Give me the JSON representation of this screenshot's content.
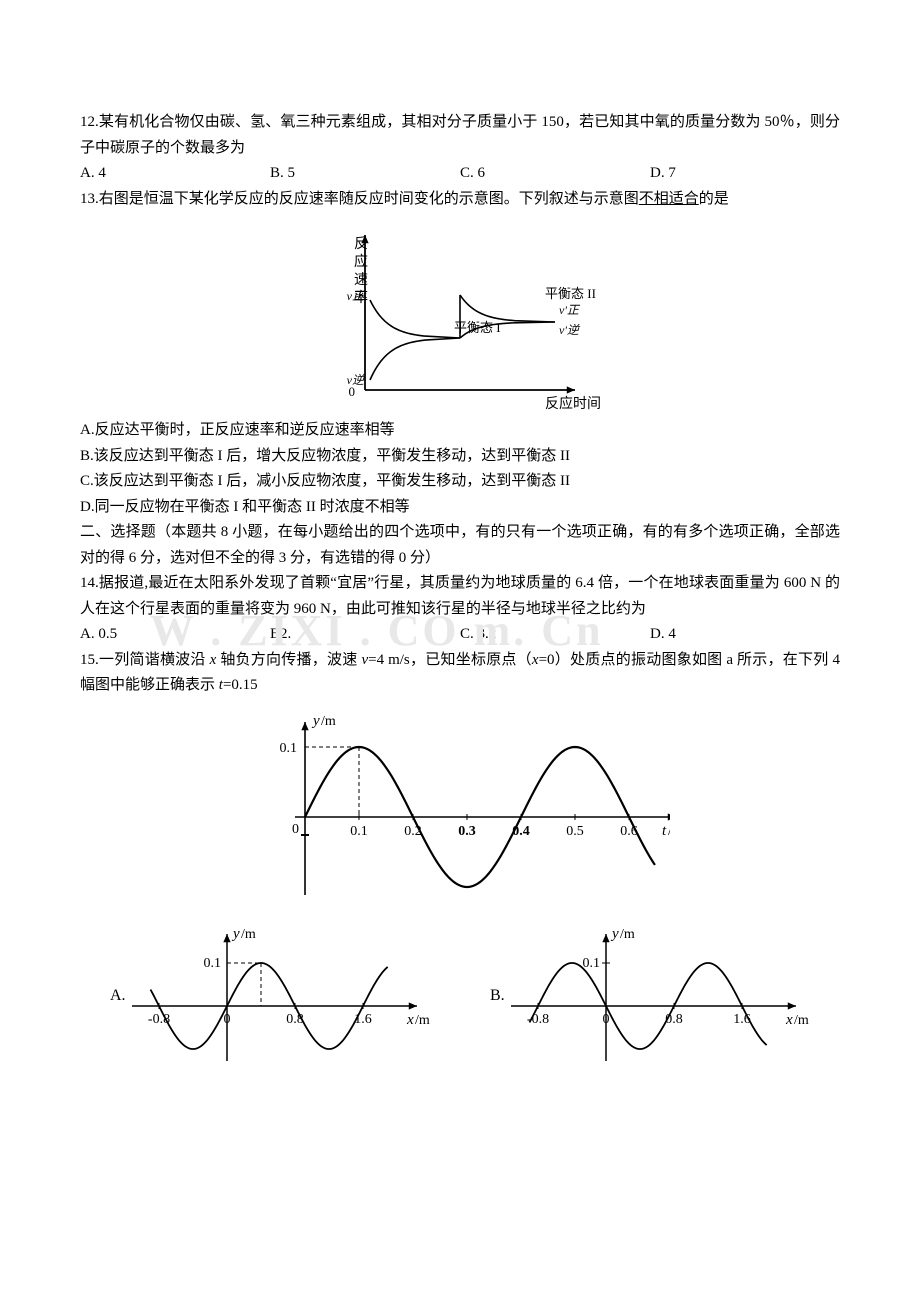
{
  "q12": {
    "stem": "12.某有机化合物仅由碳、氢、氧三种元素组成，其相对分子质量小于 150，若已知其中氧的质量分数为 50％，则分子中碳原子的个数最多为",
    "opts": {
      "A": "A. 4",
      "B": "B. 5",
      "C": "C. 6",
      "D": "D. 7"
    }
  },
  "q13": {
    "stem1": "13.右图是恒温下某化学反应的反应速率随反应时间变化的示意图。下列叙述与示意图",
    "stem1_u": "不相适合",
    "stem1_tail": "的是",
    "optA": "A.反应达平衡时，正反应速率和逆反应速率相等",
    "optB": "B.该反应达到平衡态 I 后，增大反应物浓度，平衡发生移动，达到平衡态 II",
    "optC": "C.该反应达到平衡态 I 后，减小反应物浓度，平衡发生移动，达到平衡态 II",
    "optD": "D.同一反应物在平衡态 I 和平衡态 II 时浓度不相等",
    "figure": {
      "ylabel": "反应速率",
      "xlabel": "反应时间",
      "label_p1": "平衡态 I",
      "label_p2": "平衡态 II",
      "v_zheng": "v正",
      "v_ni": "v逆",
      "v_zheng_p": "v'正",
      "v_ni_p": "v'逆",
      "axis_color": "#000000",
      "line_color": "#000000",
      "curve_width": 1.6,
      "axis_width": 1.8
    }
  },
  "sec2": "二、选择题（本题共 8 小题，在每小题给出的四个选项中，有的只有一个选项正确，有的有多个选项正确，全部选对的得 6 分，选对但不全的得 3 分，有选错的得 0 分）",
  "q14": {
    "stem": "14.据报道,最近在太阳系外发现了首颗“宜居”行星，其质量约为地球质量的 6.4 倍，一个在地球表面重量为 600 N 的人在这个行星表面的重量将变为 960 N，由此可推知该行星的半径与地球半径之比约为",
    "opts": {
      "A": "A. 0.5",
      "B": "B2.",
      "C": "C. 3.2",
      "D": "D. 4"
    }
  },
  "watermark": "W . ZIXI . CO m. Cn",
  "q15": {
    "stem_a": "15.一列简谐横波沿 ",
    "stem_b": " 轴负方向传播，波速 ",
    "stem_c": "=4 m/s，已知坐标原点（",
    "stem_d": "=0）处质点的振动图象如图 a 所示，在下列 4 幅图中能够正确表示 ",
    "stem_e": "=0.15",
    "var_x": "x",
    "var_v": "v",
    "var_t": "t",
    "main_chart": {
      "type": "line",
      "xlabel_var": "t",
      "xlabel_unit": "/s",
      "ylabel_var": "y",
      "ylabel_unit": "/m",
      "ylim": [
        -0.12,
        0.12
      ],
      "xlim": [
        0,
        0.65
      ],
      "yticks": [
        0.1
      ],
      "xticks": [
        "0.1",
        "0.2",
        "0.3",
        "0.4",
        "0.5",
        "0.6"
      ],
      "amplitude": 0.1,
      "period": 0.4,
      "phase": 0,
      "axis_color": "#000000",
      "curve_color": "#000000",
      "curve_width": 2.2,
      "dash_color": "#000000",
      "dash_pattern": "4 3",
      "bg": "#ffffff"
    },
    "opt_chart_common": {
      "xlabel_var": "x",
      "xlabel_unit": "/m",
      "ylabel_var": "y",
      "ylabel_unit": "/m",
      "ytick": "0.1",
      "xticks": [
        "-0.8",
        "0",
        "0.8",
        "1.6"
      ],
      "amplitude": 0.1,
      "wavelength": 1.6,
      "axis_color": "#000000",
      "curve_color": "#000000",
      "curve_width": 1.8,
      "dash_pattern": "4 3"
    },
    "optA": {
      "letter": "A.",
      "phase_deg": 0
    },
    "optB": {
      "letter": "B.",
      "phase_deg": 180
    }
  }
}
